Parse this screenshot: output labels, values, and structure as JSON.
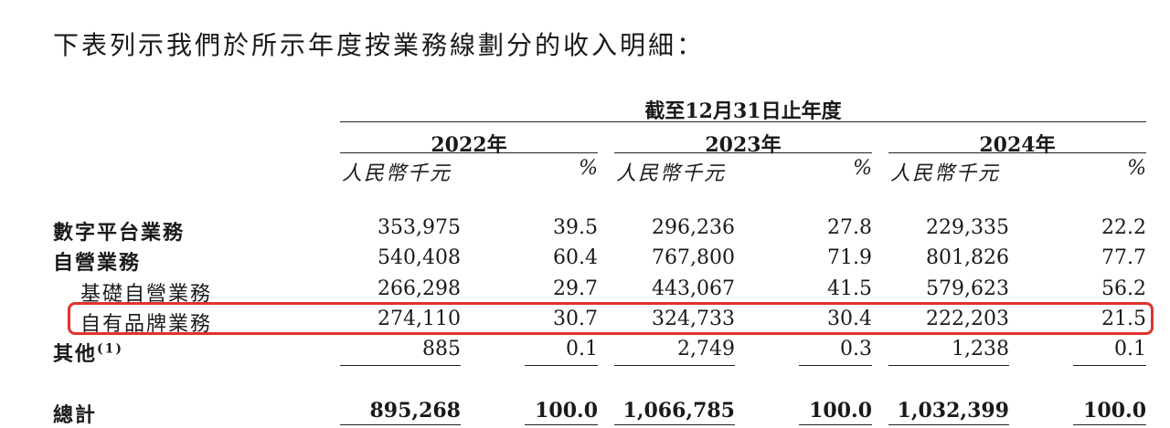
{
  "intro": "下表列示我們於所示年度按業務線劃分的收入明細：",
  "period_header": "截至12月31日止年度",
  "years": [
    {
      "label": "2022年",
      "unit": "人民幣千元",
      "pct": "%"
    },
    {
      "label": "2023年",
      "unit": "人民幣千元",
      "pct": "%"
    },
    {
      "label": "2024年",
      "unit": "人民幣千元",
      "pct": "%"
    }
  ],
  "rows": [
    {
      "label": "數字平台業務",
      "values": [
        "353,975",
        "39.5",
        "296,236",
        "27.8",
        "229,335",
        "22.2"
      ]
    },
    {
      "label": "自營業務",
      "values": [
        "540,408",
        "60.4",
        "767,800",
        "71.9",
        "801,826",
        "77.7"
      ]
    },
    {
      "label": "基礎自營業務",
      "values": [
        "266,298",
        "29.7",
        "443,067",
        "41.5",
        "579,623",
        "56.2"
      ]
    },
    {
      "label": "自有品牌業務",
      "values": [
        "274,110",
        "30.7",
        "324,733",
        "30.4",
        "222,203",
        "21.5"
      ]
    },
    {
      "label": "其他",
      "footnote": "(1)",
      "values": [
        "885",
        "0.1",
        "2,749",
        "0.3",
        "1,238",
        "0.1"
      ]
    },
    {
      "label": "總計",
      "values": [
        "895,268",
        "100.0",
        "1,066,785",
        "100.0",
        "1,032,399",
        "100.0"
      ]
    }
  ],
  "highlight_color": "#e0332c"
}
